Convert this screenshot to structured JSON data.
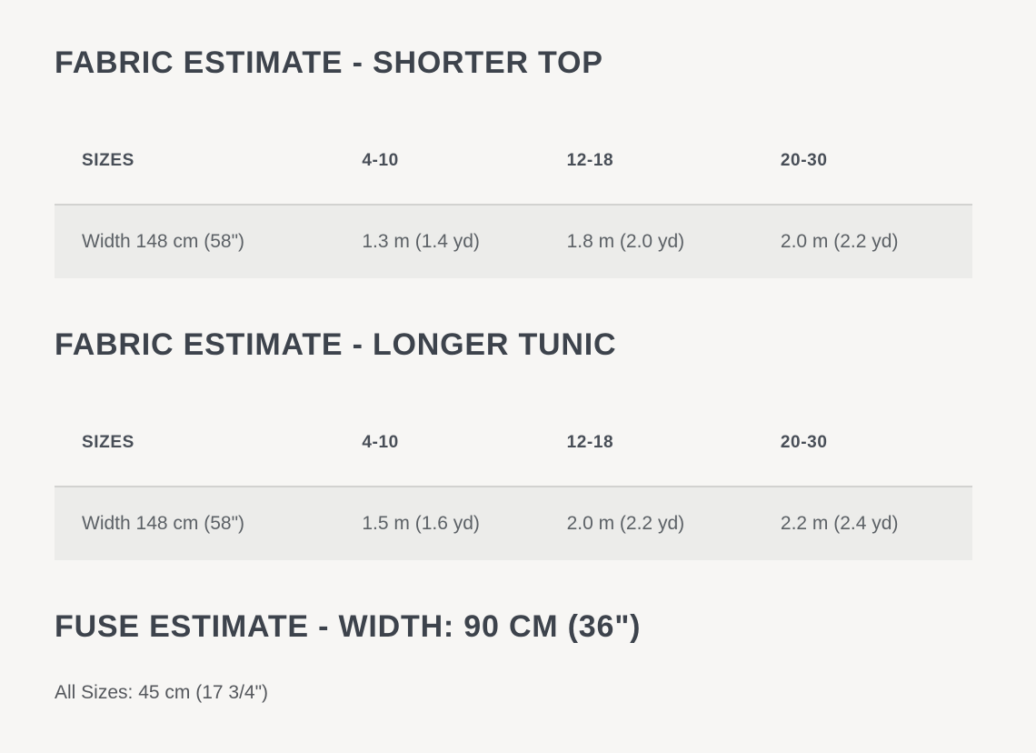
{
  "colors": {
    "page_background": "#f7f6f4",
    "heading_text": "#3d434c",
    "table_header_text": "#484e57",
    "table_body_text": "#5c6166",
    "row_background": "#ececea",
    "header_rule": "#d2d2d0"
  },
  "sections": [
    {
      "title": "FABRIC ESTIMATE - SHORTER TOP",
      "table": {
        "headers": [
          "SIZES",
          "4-10",
          "12-18",
          "20-30"
        ],
        "rows": [
          [
            "Width 148 cm (58\")",
            "1.3 m (1.4 yd)",
            "1.8 m (2.0 yd)",
            "2.0 m (2.2 yd)"
          ]
        ]
      }
    },
    {
      "title": "FABRIC ESTIMATE - LONGER TUNIC",
      "table": {
        "headers": [
          "SIZES",
          "4-10",
          "12-18",
          "20-30"
        ],
        "rows": [
          [
            "Width 148 cm (58\")",
            "1.5 m (1.6 yd)",
            "2.0 m (2.2 yd)",
            "2.2 m (2.4 yd)"
          ]
        ]
      }
    },
    {
      "title": "FUSE ESTIMATE - WIDTH: 90 CM (36\")",
      "note": "All Sizes: 45 cm (17 3/4\")"
    }
  ]
}
